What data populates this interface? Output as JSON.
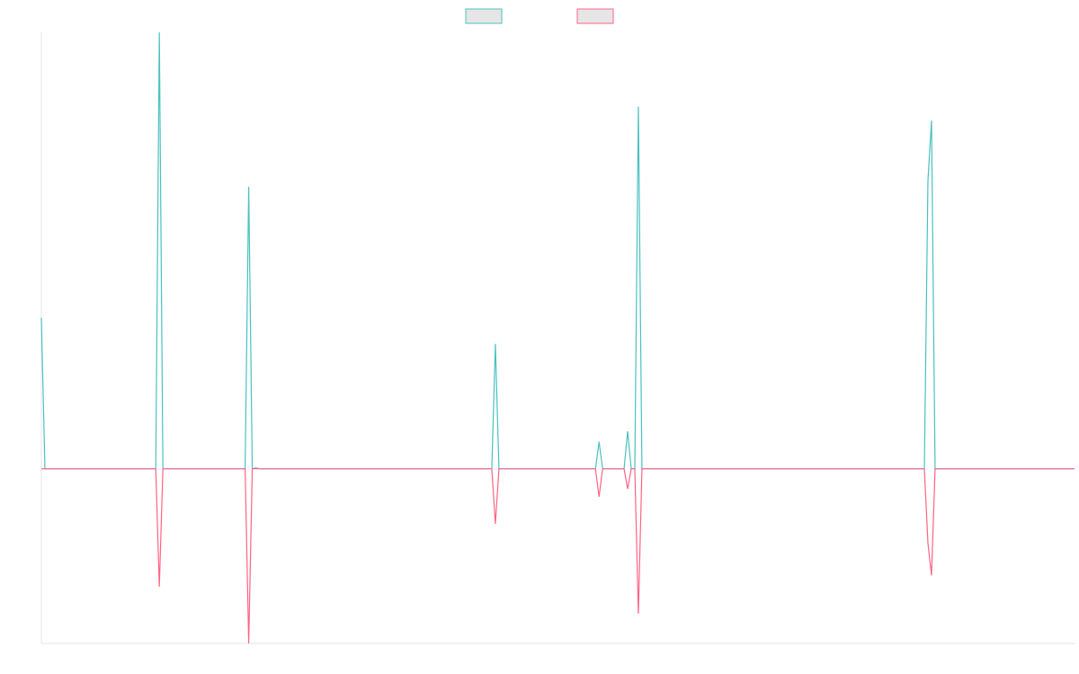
{
  "chart_data": {
    "type": "line",
    "title": "",
    "xlabel": "",
    "ylabel": "",
    "grid": false,
    "legend": "top-center",
    "x_count": 290,
    "ylim": [
      -200,
      500
    ],
    "series": [
      {
        "color": "#4bc0c0",
        "fill": "#e6e6e6",
        "points": [
          [
            0,
            173
          ],
          [
            1,
            0
          ],
          [
            32,
            0
          ],
          [
            33,
            500
          ],
          [
            34,
            0
          ],
          [
            57,
            0
          ],
          [
            58,
            323
          ],
          [
            59,
            0
          ],
          [
            126,
            0
          ],
          [
            127,
            143
          ],
          [
            128,
            0
          ],
          [
            155,
            0
          ],
          [
            156,
            31
          ],
          [
            157,
            0
          ],
          [
            163,
            0
          ],
          [
            164,
            43
          ],
          [
            165,
            0
          ],
          [
            166,
            0
          ],
          [
            167,
            415
          ],
          [
            168,
            0
          ],
          [
            247,
            0
          ],
          [
            248,
            330
          ],
          [
            249,
            399
          ],
          [
            250,
            0
          ],
          [
            289,
            0
          ]
        ]
      },
      {
        "color": "#ff6384",
        "fill": "#e6e6e6",
        "points": [
          [
            0,
            0
          ],
          [
            32,
            0
          ],
          [
            33,
            -135
          ],
          [
            34,
            0
          ],
          [
            57,
            0
          ],
          [
            58,
            -200
          ],
          [
            59,
            0
          ],
          [
            60,
            1
          ],
          [
            61,
            0
          ],
          [
            126,
            0
          ],
          [
            127,
            -63
          ],
          [
            128,
            0
          ],
          [
            155,
            0
          ],
          [
            156,
            -32
          ],
          [
            157,
            0
          ],
          [
            163,
            0
          ],
          [
            164,
            -23
          ],
          [
            165,
            0
          ],
          [
            166,
            0
          ],
          [
            167,
            -166
          ],
          [
            168,
            0
          ],
          [
            247,
            0
          ],
          [
            248,
            -85
          ],
          [
            249,
            -122
          ],
          [
            250,
            0
          ],
          [
            289,
            0
          ]
        ]
      }
    ]
  }
}
